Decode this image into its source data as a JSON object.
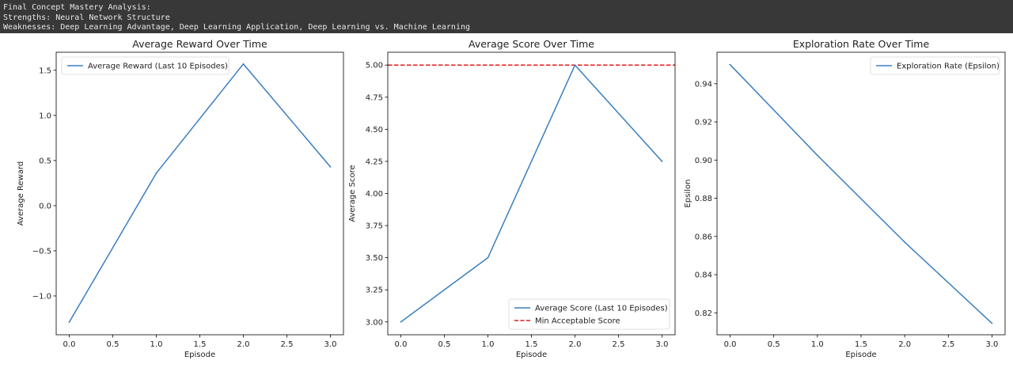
{
  "console": {
    "lines": [
      "Final Concept Mastery Analysis:",
      "Strengths: Neural Network Structure",
      "Weaknesses: Deep Learning Advantage, Deep Learning Application, Deep Learning vs. Machine Learning"
    ]
  },
  "chart_data": [
    {
      "type": "line",
      "title": "Average Reward Over Time",
      "xlabel": "Episode",
      "ylabel": "Average Reward",
      "x": [
        0,
        1,
        2,
        3
      ],
      "xticks": [
        0.0,
        0.5,
        1.0,
        1.5,
        2.0,
        2.5,
        3.0
      ],
      "xtick_labels": [
        "0.0",
        "0.5",
        "1.0",
        "1.5",
        "2.0",
        "2.5",
        "3.0"
      ],
      "yticks": [
        -1.0,
        -0.5,
        0.0,
        0.5,
        1.0,
        1.5
      ],
      "ytick_labels": [
        "−1.0",
        "−0.5",
        "0.0",
        "0.5",
        "1.0",
        "1.5"
      ],
      "xlim": [
        -0.15,
        3.15
      ],
      "ylim": [
        -1.43,
        1.7
      ],
      "series": [
        {
          "name": "Average Reward (Last 10 Episodes)",
          "values": [
            -1.29,
            0.36,
            1.57,
            0.43
          ],
          "color": "#3a7ebf",
          "style": "solid"
        }
      ],
      "legend": "upper-left",
      "grid": false
    },
    {
      "type": "line",
      "title": "Average Score Over Time",
      "xlabel": "Episode",
      "ylabel": "Average Score",
      "x": [
        0,
        1,
        2,
        3
      ],
      "xticks": [
        0.0,
        0.5,
        1.0,
        1.5,
        2.0,
        2.5,
        3.0
      ],
      "xtick_labels": [
        "0.0",
        "0.5",
        "1.0",
        "1.5",
        "2.0",
        "2.5",
        "3.0"
      ],
      "yticks": [
        3.0,
        3.25,
        3.5,
        3.75,
        4.0,
        4.25,
        4.5,
        4.75,
        5.0
      ],
      "ytick_labels": [
        "3.00",
        "3.25",
        "3.50",
        "3.75",
        "4.00",
        "4.25",
        "4.50",
        "4.75",
        "5.00"
      ],
      "xlim": [
        -0.15,
        3.15
      ],
      "ylim": [
        2.9,
        5.1
      ],
      "series": [
        {
          "name": "Average Score (Last 10 Episodes)",
          "values": [
            3.0,
            3.5,
            5.0,
            4.25
          ],
          "color": "#3a7ebf",
          "style": "solid"
        }
      ],
      "hlines": [
        {
          "name": "Min Acceptable Score",
          "y": 5.0,
          "color": "#e31a1c",
          "style": "dashed"
        }
      ],
      "legend": "lower-right",
      "grid": false
    },
    {
      "type": "line",
      "title": "Exploration Rate Over Time",
      "xlabel": "Episode",
      "ylabel": "Epsilon",
      "x": [
        0,
        1,
        2,
        3
      ],
      "xticks": [
        0.0,
        0.5,
        1.0,
        1.5,
        2.0,
        2.5,
        3.0
      ],
      "xtick_labels": [
        "0.0",
        "0.5",
        "1.0",
        "1.5",
        "2.0",
        "2.5",
        "3.0"
      ],
      "yticks": [
        0.82,
        0.84,
        0.86,
        0.88,
        0.9,
        0.92,
        0.94
      ],
      "ytick_labels": [
        "0.82",
        "0.84",
        "0.86",
        "0.88",
        "0.90",
        "0.92",
        "0.94"
      ],
      "xlim": [
        -0.15,
        3.15
      ],
      "ylim": [
        0.8085,
        0.9565
      ],
      "series": [
        {
          "name": "Exploration Rate (Epsilon)",
          "values": [
            0.95,
            0.9025,
            0.857,
            0.8145
          ],
          "color": "#3a7ebf",
          "style": "solid"
        }
      ],
      "legend": "upper-right",
      "grid": false
    }
  ]
}
